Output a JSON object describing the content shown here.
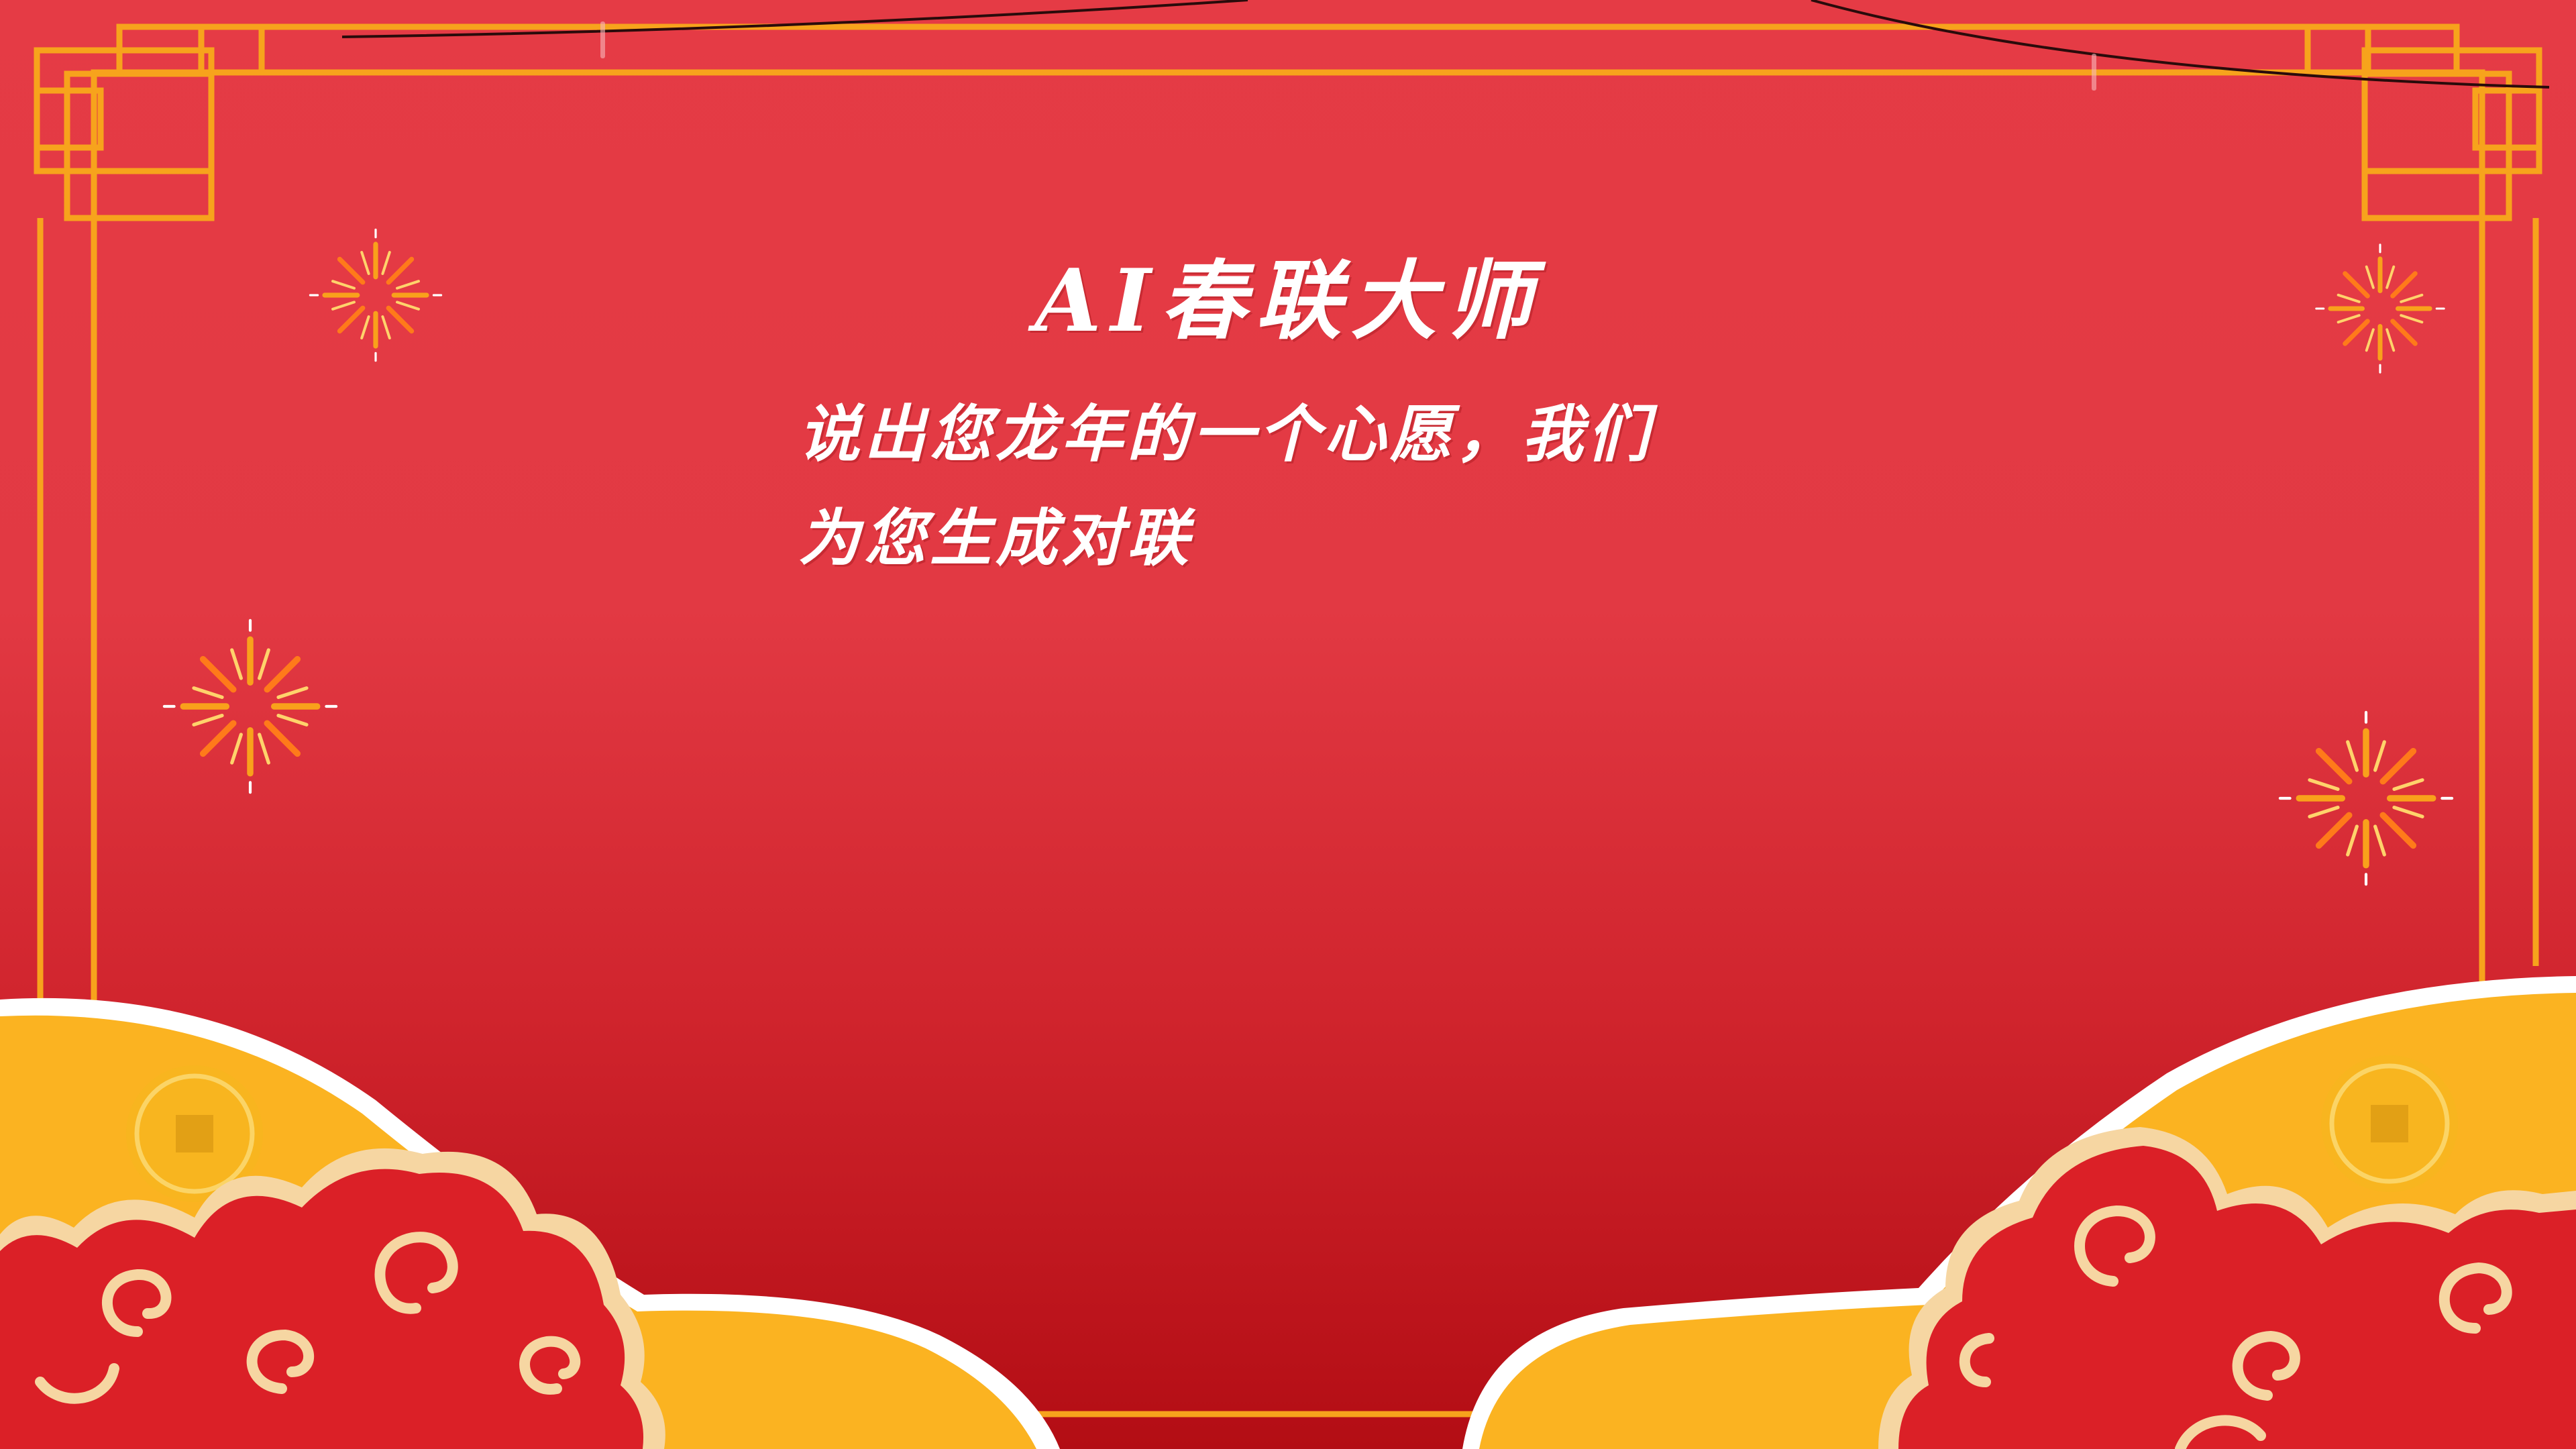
{
  "banner": {
    "title": "AI春联大师",
    "subtitle_line1": "说出您龙年的一个心愿，我们",
    "subtitle_line2": "为您生成对联"
  },
  "theme": {
    "background": "#e23943",
    "frame": "#f7a31c",
    "cloud_red": "#db2027",
    "cloud_outline": "#f8d9a0",
    "hill_gold": "#fbb321",
    "text": "#ffffff"
  },
  "decorations": [
    "firework-icon",
    "coin-icon",
    "auspicious-cloud",
    "chinese-window-frame"
  ]
}
